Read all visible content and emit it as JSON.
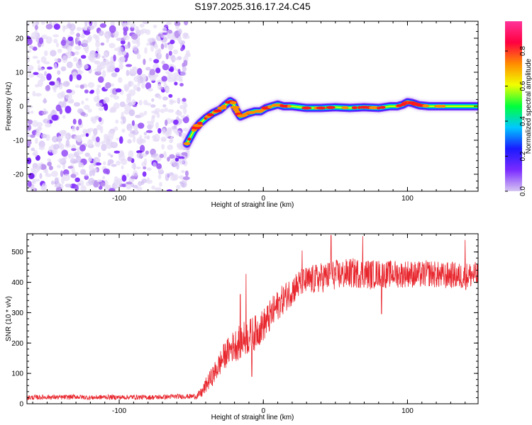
{
  "chart_data": [
    {
      "type": "heatmap",
      "title": "S197.2025.316.17.24.C45",
      "xlabel": "Height of straight line (km)",
      "ylabel": "Frequency (Hz)",
      "xlim": [
        -164,
        149
      ],
      "ylim": [
        -25,
        25
      ],
      "xticks": [
        -100,
        0,
        100
      ],
      "xtick_labels": [
        "-100",
        "0",
        "100"
      ],
      "yticks": [
        -20,
        -10,
        0,
        10,
        20
      ],
      "ytick_labels": [
        "-20",
        "-10",
        "0",
        "10",
        "20"
      ],
      "noise_region_x": [
        -164,
        -52
      ],
      "ridge": {
        "x": [
          -53,
          -48,
          -44,
          -40,
          -35,
          -30,
          -26,
          -23,
          -21,
          -19,
          -16,
          -13,
          -10,
          -6,
          -2,
          2,
          6,
          10,
          14,
          20,
          30,
          40,
          50,
          60,
          70,
          80,
          88,
          93,
          97,
          100,
          103,
          108,
          115,
          125,
          135,
          149
        ],
        "y": [
          -11,
          -7,
          -5,
          -3.5,
          -2,
          -1,
          0.5,
          1.5,
          1,
          -1,
          -3,
          -2.5,
          -2,
          -1.5,
          -1.5,
          -0.5,
          0,
          0.5,
          0,
          0,
          -0.5,
          -0.5,
          -0.3,
          -0.5,
          -0.3,
          -0.5,
          0,
          0,
          0.5,
          1.2,
          1,
          0.3,
          0,
          0,
          0,
          0
        ]
      },
      "colorbar": {
        "label": "Normalized spectral amplitude",
        "ticks": [
          0.0,
          0.2,
          0.4,
          0.6,
          0.8
        ],
        "tick_labels": [
          "0.0",
          "0.2",
          "0.4",
          "0.6",
          "0.8"
        ],
        "range": [
          0,
          0.97
        ],
        "colors": [
          "#d7c6f2",
          "#7b2bff",
          "#1a1aff",
          "#00c8ff",
          "#00ff3c",
          "#f2ff00",
          "#ff8c00",
          "#ff0040",
          "#ff3399"
        ]
      }
    },
    {
      "type": "line",
      "title": "",
      "xlabel": "Height of straight line (km)",
      "ylabel": "SNR (10 * v/v)",
      "xlim": [
        -164,
        149
      ],
      "ylim": [
        0,
        560
      ],
      "xticks": [
        -100,
        0,
        100
      ],
      "xtick_labels": [
        "-100",
        "0",
        "100"
      ],
      "yticks": [
        0,
        100,
        200,
        300,
        400,
        500
      ],
      "ytick_labels": [
        "0",
        "100",
        "200",
        "300",
        "400",
        "500"
      ],
      "color": "#e8262d",
      "series": [
        {
          "name": "SNR",
          "x": [
            -164,
            -150,
            -140,
            -130,
            -120,
            -110,
            -100,
            -90,
            -80,
            -70,
            -60,
            -52,
            -46,
            -42,
            -40,
            -37,
            -34,
            -31,
            -28,
            -25,
            -22,
            -19,
            -16,
            -13,
            -10,
            -7,
            -4,
            -1,
            2,
            5,
            8,
            11,
            14,
            17,
            20,
            24,
            28,
            32,
            36,
            40,
            45,
            50,
            55,
            60,
            65,
            70,
            75,
            80,
            85,
            90,
            95,
            100,
            105,
            110,
            115,
            120,
            125,
            130,
            135,
            140,
            145,
            149
          ],
          "y": [
            20,
            22,
            21,
            23,
            20,
            22,
            21,
            22,
            21,
            22,
            24,
            24,
            25,
            40,
            60,
            80,
            100,
            125,
            150,
            170,
            185,
            195,
            205,
            215,
            220,
            230,
            240,
            255,
            270,
            290,
            310,
            330,
            345,
            360,
            375,
            390,
            400,
            405,
            410,
            415,
            420,
            425,
            425,
            430,
            430,
            430,
            425,
            430,
            425,
            430,
            425,
            430,
            425,
            425,
            430,
            425,
            420,
            425,
            420,
            420,
            425,
            420
          ],
          "amplitude": [
            8,
            8,
            8,
            8,
            8,
            8,
            8,
            8,
            8,
            8,
            8,
            8,
            10,
            20,
            25,
            30,
            35,
            40,
            45,
            45,
            50,
            55,
            60,
            60,
            60,
            60,
            55,
            55,
            55,
            55,
            55,
            50,
            50,
            50,
            50,
            50,
            50,
            50,
            50,
            50,
            50,
            50,
            50,
            50,
            50,
            50,
            50,
            45,
            45,
            45,
            45,
            45,
            45,
            45,
            45,
            45,
            45,
            45,
            45,
            45,
            45,
            45
          ],
          "spikes": [
            {
              "x": -12,
              "y": 428
            },
            {
              "x": -16,
              "y": 360
            },
            {
              "x": 27,
              "y": 505
            },
            {
              "x": 47,
              "y": 555
            },
            {
              "x": 69,
              "y": 552
            },
            {
              "x": 140,
              "y": 540
            },
            {
              "x": -8,
              "y": 90
            },
            {
              "x": 82,
              "y": 296
            }
          ]
        }
      ]
    }
  ]
}
